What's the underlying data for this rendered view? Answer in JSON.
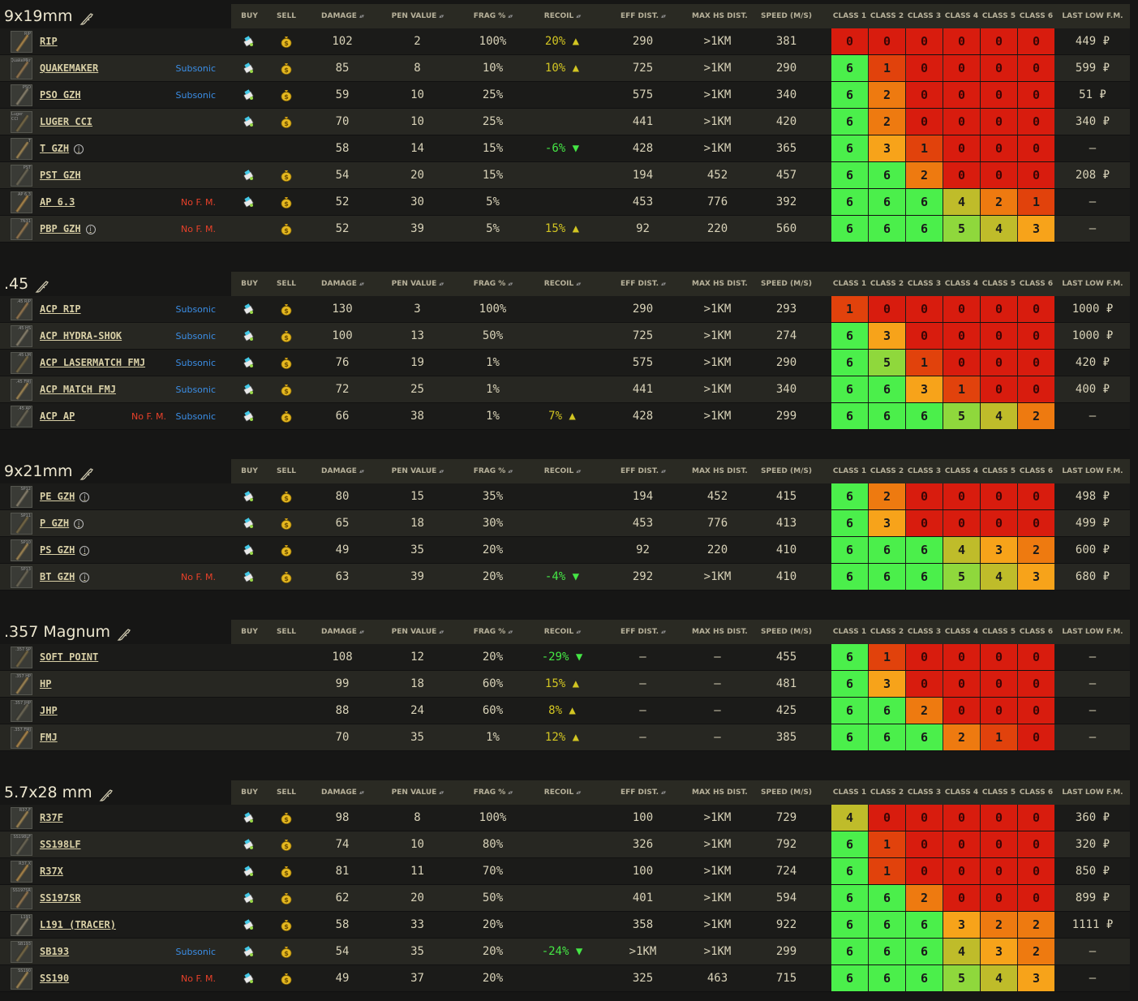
{
  "columns": {
    "buy": "BUY",
    "sell": "SELL",
    "damage": "DAMAGE",
    "pen": "PEN VALUE",
    "frag": "FRAG %",
    "recoil": "RECOIL",
    "eff": "EFF DIST.",
    "maxhs": "MAX HS DIST.",
    "speed": "SPEED (M/S)",
    "class1": "CLASS 1",
    "class2": "CLASS 2",
    "class3": "CLASS 3",
    "class4": "CLASS 4",
    "class5": "CLASS 5",
    "class6": "CLASS 6",
    "lastlow": "LAST LOW F.M."
  },
  "tags": {
    "subsonic": "Subsonic",
    "no_fm": "No F. M."
  },
  "icons": {
    "buy": "buy-cart-icon",
    "sell": "money-bag-icon",
    "weapon": "gun-icon",
    "info": "info-icon"
  },
  "class_colors": {
    "0": "#d81c0e",
    "1": "#e1420c",
    "2": "#ee7a10",
    "3": "#f7a31a",
    "4": "#bfbc2a",
    "5": "#8fd83c",
    "6": "#4bef4b"
  },
  "sections": [
    {
      "title": "9x19mm",
      "rows": [
        {
          "name": "RIP",
          "icon_label": "RIP",
          "info": false,
          "nofm": false,
          "subsonic": false,
          "buy": true,
          "sell": true,
          "damage": "102",
          "pen": "2",
          "frag": "100%",
          "recoil": "20%",
          "recoil_dir": "up",
          "eff": "290",
          "maxhs": ">1KM",
          "speed": "381",
          "classes": [
            "0",
            "0",
            "0",
            "0",
            "0",
            "0"
          ],
          "lastlow": "449 ₽"
        },
        {
          "name": "QUAKEMAKER",
          "icon_label": "QuakeMkr",
          "info": false,
          "nofm": false,
          "subsonic": true,
          "buy": true,
          "sell": true,
          "damage": "85",
          "pen": "8",
          "frag": "10%",
          "recoil": "10%",
          "recoil_dir": "up",
          "eff": "725",
          "maxhs": ">1KM",
          "speed": "290",
          "classes": [
            "6",
            "1",
            "0",
            "0",
            "0",
            "0"
          ],
          "lastlow": "599 ₽"
        },
        {
          "name": "PSO GZH",
          "icon_label": "PSO",
          "info": false,
          "nofm": false,
          "subsonic": true,
          "buy": true,
          "sell": true,
          "damage": "59",
          "pen": "10",
          "frag": "25%",
          "recoil": "",
          "recoil_dir": "",
          "eff": "575",
          "maxhs": ">1KM",
          "speed": "340",
          "classes": [
            "6",
            "2",
            "0",
            "0",
            "0",
            "0"
          ],
          "lastlow": "51 ₽"
        },
        {
          "name": "LUGER CCI",
          "icon_label": "Luger CCI",
          "info": false,
          "nofm": false,
          "subsonic": false,
          "buy": true,
          "sell": true,
          "damage": "70",
          "pen": "10",
          "frag": "25%",
          "recoil": "",
          "recoil_dir": "",
          "eff": "441",
          "maxhs": ">1KM",
          "speed": "420",
          "classes": [
            "6",
            "2",
            "0",
            "0",
            "0",
            "0"
          ],
          "lastlow": "340 ₽"
        },
        {
          "name": "T GZH",
          "icon_label": "T",
          "info": true,
          "nofm": false,
          "subsonic": false,
          "buy": false,
          "sell": false,
          "damage": "58",
          "pen": "14",
          "frag": "15%",
          "recoil": "-6%",
          "recoil_dir": "down",
          "eff": "428",
          "maxhs": ">1KM",
          "speed": "365",
          "classes": [
            "6",
            "3",
            "1",
            "0",
            "0",
            "0"
          ],
          "lastlow": "–"
        },
        {
          "name": "PST GZH",
          "icon_label": "PST",
          "info": false,
          "nofm": false,
          "subsonic": false,
          "buy": true,
          "sell": true,
          "damage": "54",
          "pen": "20",
          "frag": "15%",
          "recoil": "",
          "recoil_dir": "",
          "eff": "194",
          "maxhs": "452",
          "speed": "457",
          "classes": [
            "6",
            "6",
            "2",
            "0",
            "0",
            "0"
          ],
          "lastlow": "208 ₽"
        },
        {
          "name": "AP 6.3",
          "icon_label": "AP 6.3",
          "info": false,
          "nofm": true,
          "subsonic": false,
          "buy": true,
          "sell": true,
          "damage": "52",
          "pen": "30",
          "frag": "5%",
          "recoil": "",
          "recoil_dir": "",
          "eff": "453",
          "maxhs": "776",
          "speed": "392",
          "classes": [
            "6",
            "6",
            "6",
            "4",
            "2",
            "1"
          ],
          "lastlow": "–"
        },
        {
          "name": "PBP GZH",
          "icon_label": "7N31",
          "info": true,
          "nofm": true,
          "subsonic": false,
          "buy": false,
          "sell": true,
          "damage": "52",
          "pen": "39",
          "frag": "5%",
          "recoil": "15%",
          "recoil_dir": "up",
          "eff": "92",
          "maxhs": "220",
          "speed": "560",
          "classes": [
            "6",
            "6",
            "6",
            "5",
            "4",
            "3"
          ],
          "lastlow": "–"
        }
      ]
    },
    {
      "title": ".45",
      "rows": [
        {
          "name": "ACP RIP",
          "icon_label": ".45 RIP",
          "info": false,
          "nofm": false,
          "subsonic": true,
          "buy": true,
          "sell": true,
          "damage": "130",
          "pen": "3",
          "frag": "100%",
          "recoil": "",
          "recoil_dir": "",
          "eff": "290",
          "maxhs": ">1KM",
          "speed": "293",
          "classes": [
            "1",
            "0",
            "0",
            "0",
            "0",
            "0"
          ],
          "lastlow": "1000 ₽"
        },
        {
          "name": "ACP HYDRA-SHOK",
          "icon_label": ".45 HS",
          "info": false,
          "nofm": false,
          "subsonic": true,
          "buy": true,
          "sell": true,
          "damage": "100",
          "pen": "13",
          "frag": "50%",
          "recoil": "",
          "recoil_dir": "",
          "eff": "725",
          "maxhs": ">1KM",
          "speed": "274",
          "classes": [
            "6",
            "3",
            "0",
            "0",
            "0",
            "0"
          ],
          "lastlow": "1000 ₽"
        },
        {
          "name": "ACP LASERMATCH FMJ",
          "icon_label": ".45 LM",
          "info": false,
          "nofm": false,
          "subsonic": true,
          "buy": true,
          "sell": true,
          "damage": "76",
          "pen": "19",
          "frag": "1%",
          "recoil": "",
          "recoil_dir": "",
          "eff": "575",
          "maxhs": ">1KM",
          "speed": "290",
          "classes": [
            "6",
            "5",
            "1",
            "0",
            "0",
            "0"
          ],
          "lastlow": "420 ₽"
        },
        {
          "name": "ACP MATCH FMJ",
          "icon_label": ".45 FMJ",
          "info": false,
          "nofm": false,
          "subsonic": true,
          "buy": true,
          "sell": true,
          "damage": "72",
          "pen": "25",
          "frag": "1%",
          "recoil": "",
          "recoil_dir": "",
          "eff": "441",
          "maxhs": ">1KM",
          "speed": "340",
          "classes": [
            "6",
            "6",
            "3",
            "1",
            "0",
            "0"
          ],
          "lastlow": "400 ₽"
        },
        {
          "name": "ACP AP",
          "icon_label": ".45 AP",
          "info": false,
          "nofm": true,
          "subsonic": true,
          "buy": true,
          "sell": true,
          "damage": "66",
          "pen": "38",
          "frag": "1%",
          "recoil": "7%",
          "recoil_dir": "up",
          "eff": "428",
          "maxhs": ">1KM",
          "speed": "299",
          "classes": [
            "6",
            "6",
            "6",
            "5",
            "4",
            "2"
          ],
          "lastlow": "–"
        }
      ]
    },
    {
      "title": "9x21mm",
      "rows": [
        {
          "name": "PE GZH",
          "icon_label": "SP12",
          "info": true,
          "nofm": false,
          "subsonic": false,
          "buy": true,
          "sell": true,
          "damage": "80",
          "pen": "15",
          "frag": "35%",
          "recoil": "",
          "recoil_dir": "",
          "eff": "194",
          "maxhs": "452",
          "speed": "415",
          "classes": [
            "6",
            "2",
            "0",
            "0",
            "0",
            "0"
          ],
          "lastlow": "498 ₽"
        },
        {
          "name": "P GZH",
          "icon_label": "SP11",
          "info": true,
          "nofm": false,
          "subsonic": false,
          "buy": true,
          "sell": true,
          "damage": "65",
          "pen": "18",
          "frag": "30%",
          "recoil": "",
          "recoil_dir": "",
          "eff": "453",
          "maxhs": "776",
          "speed": "413",
          "classes": [
            "6",
            "3",
            "0",
            "0",
            "0",
            "0"
          ],
          "lastlow": "499 ₽"
        },
        {
          "name": "PS GZH",
          "icon_label": "SP10",
          "info": true,
          "nofm": false,
          "subsonic": false,
          "buy": true,
          "sell": true,
          "damage": "49",
          "pen": "35",
          "frag": "20%",
          "recoil": "",
          "recoil_dir": "",
          "eff": "92",
          "maxhs": "220",
          "speed": "410",
          "classes": [
            "6",
            "6",
            "6",
            "4",
            "3",
            "2"
          ],
          "lastlow": "600 ₽"
        },
        {
          "name": "BT GZH",
          "icon_label": "SP13",
          "info": true,
          "nofm": true,
          "subsonic": false,
          "buy": true,
          "sell": true,
          "damage": "63",
          "pen": "39",
          "frag": "20%",
          "recoil": "-4%",
          "recoil_dir": "down",
          "eff": "292",
          "maxhs": ">1KM",
          "speed": "410",
          "classes": [
            "6",
            "6",
            "6",
            "5",
            "4",
            "3"
          ],
          "lastlow": "680 ₽"
        }
      ]
    },
    {
      "title": ".357 Magnum",
      "rows": [
        {
          "name": "SOFT POINT",
          "icon_label": ".357 SP",
          "info": false,
          "nofm": false,
          "subsonic": false,
          "buy": false,
          "sell": false,
          "damage": "108",
          "pen": "12",
          "frag": "20%",
          "recoil": "-29%",
          "recoil_dir": "down",
          "eff": "–",
          "maxhs": "–",
          "speed": "455",
          "classes": [
            "6",
            "1",
            "0",
            "0",
            "0",
            "0"
          ],
          "lastlow": "–"
        },
        {
          "name": "HP",
          "icon_label": ".357 HP",
          "info": false,
          "nofm": false,
          "subsonic": false,
          "buy": false,
          "sell": false,
          "damage": "99",
          "pen": "18",
          "frag": "60%",
          "recoil": "15%",
          "recoil_dir": "up",
          "eff": "–",
          "maxhs": "–",
          "speed": "481",
          "classes": [
            "6",
            "3",
            "0",
            "0",
            "0",
            "0"
          ],
          "lastlow": "–"
        },
        {
          "name": "JHP",
          "icon_label": ".357 JHP",
          "info": false,
          "nofm": false,
          "subsonic": false,
          "buy": false,
          "sell": false,
          "damage": "88",
          "pen": "24",
          "frag": "60%",
          "recoil": "8%",
          "recoil_dir": "up",
          "eff": "–",
          "maxhs": "–",
          "speed": "425",
          "classes": [
            "6",
            "6",
            "2",
            "0",
            "0",
            "0"
          ],
          "lastlow": "–"
        },
        {
          "name": "FMJ",
          "icon_label": ".357 FMJ",
          "info": false,
          "nofm": false,
          "subsonic": false,
          "buy": false,
          "sell": false,
          "damage": "70",
          "pen": "35",
          "frag": "1%",
          "recoil": "12%",
          "recoil_dir": "up",
          "eff": "–",
          "maxhs": "–",
          "speed": "385",
          "classes": [
            "6",
            "6",
            "6",
            "2",
            "1",
            "0"
          ],
          "lastlow": "–"
        }
      ]
    },
    {
      "title": "5.7x28 mm",
      "rows": [
        {
          "name": "R37F",
          "icon_label": "R37.F",
          "info": false,
          "nofm": false,
          "subsonic": false,
          "buy": true,
          "sell": true,
          "damage": "98",
          "pen": "8",
          "frag": "100%",
          "recoil": "",
          "recoil_dir": "",
          "eff": "100",
          "maxhs": ">1KM",
          "speed": "729",
          "classes": [
            "4",
            "0",
            "0",
            "0",
            "0",
            "0"
          ],
          "lastlow": "360 ₽"
        },
        {
          "name": "SS198LF",
          "icon_label": "SS198LF",
          "info": false,
          "nofm": false,
          "subsonic": false,
          "buy": true,
          "sell": true,
          "damage": "74",
          "pen": "10",
          "frag": "80%",
          "recoil": "",
          "recoil_dir": "",
          "eff": "326",
          "maxhs": ">1KM",
          "speed": "792",
          "classes": [
            "6",
            "1",
            "0",
            "0",
            "0",
            "0"
          ],
          "lastlow": "320 ₽"
        },
        {
          "name": "R37X",
          "icon_label": "R37.X",
          "info": false,
          "nofm": false,
          "subsonic": false,
          "buy": true,
          "sell": true,
          "damage": "81",
          "pen": "11",
          "frag": "70%",
          "recoil": "",
          "recoil_dir": "",
          "eff": "100",
          "maxhs": ">1KM",
          "speed": "724",
          "classes": [
            "6",
            "1",
            "0",
            "0",
            "0",
            "0"
          ],
          "lastlow": "850 ₽"
        },
        {
          "name": "SS197SR",
          "icon_label": "SS197SR",
          "info": false,
          "nofm": false,
          "subsonic": false,
          "buy": true,
          "sell": true,
          "damage": "62",
          "pen": "20",
          "frag": "50%",
          "recoil": "",
          "recoil_dir": "",
          "eff": "401",
          "maxhs": ">1KM",
          "speed": "594",
          "classes": [
            "6",
            "6",
            "2",
            "0",
            "0",
            "0"
          ],
          "lastlow": "899 ₽"
        },
        {
          "name": "L191 (TRACER)",
          "icon_label": "L191",
          "info": false,
          "nofm": false,
          "subsonic": false,
          "buy": true,
          "sell": true,
          "damage": "58",
          "pen": "33",
          "frag": "20%",
          "recoil": "",
          "recoil_dir": "",
          "eff": "358",
          "maxhs": ">1KM",
          "speed": "922",
          "classes": [
            "6",
            "6",
            "6",
            "3",
            "2",
            "2"
          ],
          "lastlow": "1111 ₽"
        },
        {
          "name": "SB193",
          "icon_label": "SB193",
          "info": false,
          "nofm": false,
          "subsonic": true,
          "buy": true,
          "sell": true,
          "damage": "54",
          "pen": "35",
          "frag": "20%",
          "recoil": "-24%",
          "recoil_dir": "down",
          "eff": ">1KM",
          "maxhs": ">1KM",
          "speed": "299",
          "classes": [
            "6",
            "6",
            "6",
            "4",
            "3",
            "2"
          ],
          "lastlow": "–"
        },
        {
          "name": "SS190",
          "icon_label": "SS190",
          "info": false,
          "nofm": true,
          "subsonic": false,
          "buy": true,
          "sell": true,
          "damage": "49",
          "pen": "37",
          "frag": "20%",
          "recoil": "",
          "recoil_dir": "",
          "eff": "325",
          "maxhs": "463",
          "speed": "715",
          "classes": [
            "6",
            "6",
            "6",
            "5",
            "4",
            "3"
          ],
          "lastlow": "–"
        }
      ]
    }
  ]
}
